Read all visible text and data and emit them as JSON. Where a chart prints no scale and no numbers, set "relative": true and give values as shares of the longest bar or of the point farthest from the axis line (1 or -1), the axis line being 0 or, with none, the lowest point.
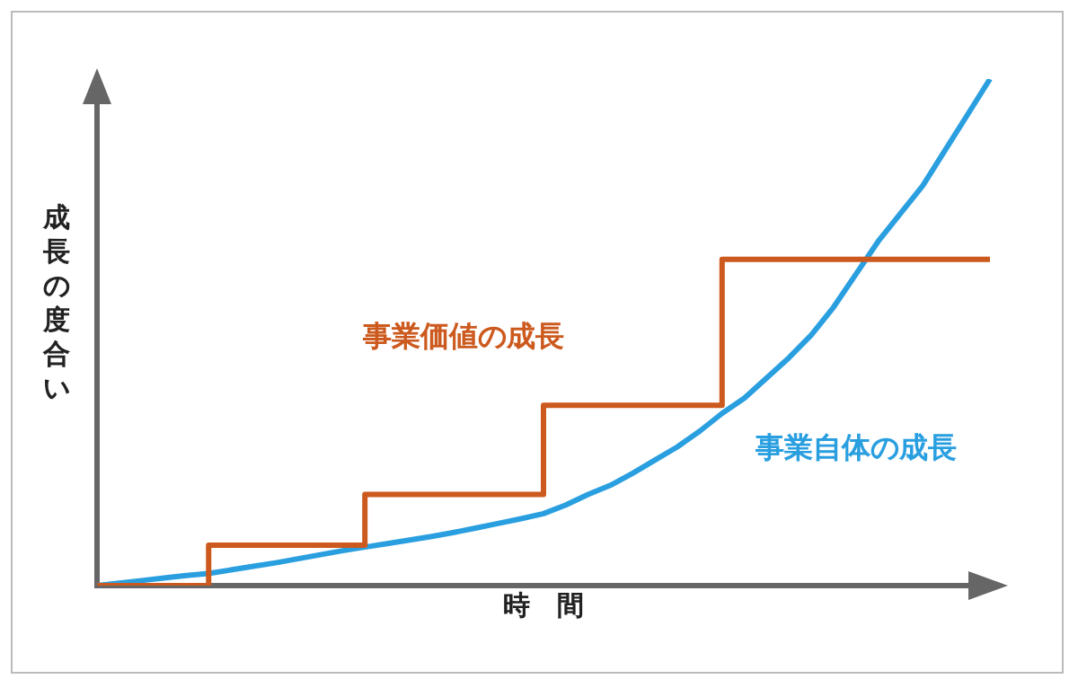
{
  "chart_data": {
    "type": "line",
    "relative": true,
    "xlabel": "時　間",
    "ylabel": "成長の度合い",
    "grid": false,
    "legend": false,
    "marker": "none",
    "categories": [
      null,
      null,
      null,
      null,
      null,
      null,
      null,
      null,
      null,
      null,
      null,
      null,
      null,
      null,
      null,
      null,
      null,
      null,
      null,
      null,
      null,
      null,
      null,
      null,
      null,
      null,
      null,
      null,
      null,
      null,
      null,
      null,
      null,
      null,
      null,
      null,
      null,
      null,
      null,
      null,
      null
    ],
    "series": [
      {
        "name": "事業価値の成長",
        "type": "step",
        "color": "#cc5a1e",
        "values": [
          0,
          0,
          0,
          0,
          0,
          0.08,
          0.08,
          0.08,
          0.08,
          0.08,
          0.08,
          0.08,
          0.18,
          0.18,
          0.18,
          0.18,
          0.18,
          0.18,
          0.18,
          0.18,
          0.356,
          0.356,
          0.356,
          0.356,
          0.356,
          0.356,
          0.356,
          0.356,
          0.644,
          0.644,
          0.644,
          0.644,
          0.644,
          0.644,
          0.644,
          0.644,
          0.644,
          0.644,
          0.644,
          0.644,
          0.644
        ]
      },
      {
        "name": "事業自体の成長",
        "color": "#2a9fe0",
        "values": [
          0,
          0.005,
          0.01,
          0.015,
          0.02,
          0.024,
          0.031,
          0.038,
          0.045,
          0.053,
          0.061,
          0.069,
          0.076,
          0.083,
          0.09,
          0.097,
          0.105,
          0.114,
          0.123,
          0.132,
          0.142,
          0.159,
          0.18,
          0.198,
          0.222,
          0.248,
          0.274,
          0.305,
          0.34,
          0.37,
          0.41,
          0.45,
          0.495,
          0.55,
          0.615,
          0.68,
          0.735,
          0.79,
          0.86,
          0.93,
          1
        ]
      }
    ]
  }
}
